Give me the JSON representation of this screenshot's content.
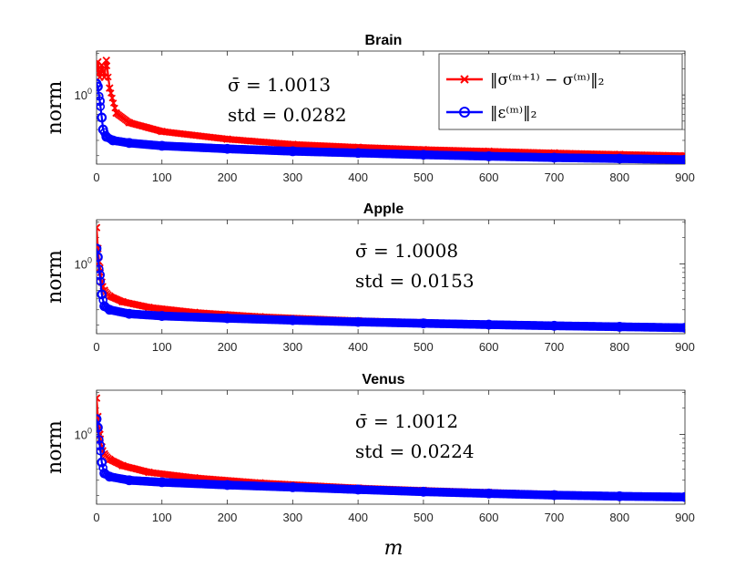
{
  "figure": {
    "xlabel": "m",
    "legend_placement": "top-right of first panel",
    "colors": {
      "series1": "#ff0000",
      "series2": "#0000ff"
    }
  },
  "chart_data": [
    {
      "type": "line",
      "title": "Brain",
      "ylabel": "norm",
      "ytick_label": {
        "base": "10",
        "exp": "0"
      },
      "xlim": [
        0,
        900
      ],
      "xticks": [
        "0",
        "100",
        "200",
        "300",
        "400",
        "500",
        "600",
        "700",
        "800",
        "900"
      ],
      "yscale": "log",
      "annotation": {
        "mean_line": "σ̄ = 1.0013",
        "std_line": "std = 0.0282"
      },
      "series": [
        {
          "name": "‖σ⁽ᵐ⁺¹⁾ − σ⁽ᵐ⁾‖₂",
          "color": "#ff0000",
          "marker": "x",
          "x": [
            0,
            2,
            5,
            8,
            12,
            15,
            20,
            30,
            50,
            100,
            200,
            300,
            400,
            500,
            600,
            700,
            800,
            900
          ],
          "y": [
            1.9,
            2.4,
            1.6,
            2.2,
            1.6,
            2.5,
            1.2,
            0.62,
            0.48,
            0.38,
            0.31,
            0.27,
            0.25,
            0.235,
            0.225,
            0.215,
            0.207,
            0.2
          ]
        },
        {
          "name": "‖ε⁽ᵐ⁾‖₂",
          "color": "#0000ff",
          "marker": "o",
          "x": [
            0,
            2,
            5,
            8,
            10,
            15,
            25,
            50,
            100,
            200,
            300,
            400,
            500,
            600,
            700,
            800,
            900
          ],
          "y": [
            1.35,
            1.25,
            0.85,
            0.55,
            0.4,
            0.33,
            0.3,
            0.28,
            0.26,
            0.24,
            0.225,
            0.215,
            0.205,
            0.197,
            0.19,
            0.185,
            0.18
          ]
        }
      ]
    },
    {
      "type": "line",
      "title": "Apple",
      "ylabel": "norm",
      "ytick_label": {
        "base": "10",
        "exp": "0"
      },
      "xlim": [
        0,
        900
      ],
      "xticks": [
        "0",
        "100",
        "200",
        "300",
        "400",
        "500",
        "600",
        "700",
        "800",
        "900"
      ],
      "yscale": "log",
      "annotation": {
        "mean_line": "σ̄ = 1.0008",
        "std_line": "std = 0.0153"
      },
      "series": [
        {
          "name": "‖σ⁽ᵐ⁺¹⁾ − σ⁽ᵐ⁾‖₂",
          "color": "#ff0000",
          "marker": "x",
          "x": [
            0,
            2,
            5,
            8,
            12,
            20,
            40,
            80,
            150,
            250,
            400,
            500,
            600,
            700,
            800,
            900
          ],
          "y": [
            2.6,
            1.5,
            0.9,
            0.62,
            0.5,
            0.43,
            0.37,
            0.32,
            0.28,
            0.25,
            0.225,
            0.215,
            0.205,
            0.198,
            0.192,
            0.187
          ]
        },
        {
          "name": "‖ε⁽ᵐ⁾‖₂",
          "color": "#0000ff",
          "marker": "o",
          "x": [
            0,
            2,
            5,
            8,
            12,
            20,
            50,
            100,
            200,
            300,
            400,
            500,
            600,
            700,
            800,
            900
          ],
          "y": [
            1.5,
            1.2,
            0.75,
            0.45,
            0.33,
            0.3,
            0.27,
            0.255,
            0.24,
            0.228,
            0.218,
            0.21,
            0.203,
            0.197,
            0.192,
            0.187
          ]
        }
      ]
    },
    {
      "type": "line",
      "title": "Venus",
      "ylabel": "norm",
      "ytick_label": {
        "base": "10",
        "exp": "0"
      },
      "xlim": [
        0,
        900
      ],
      "xticks": [
        "0",
        "100",
        "200",
        "300",
        "400",
        "500",
        "600",
        "700",
        "800",
        "900"
      ],
      "yscale": "log",
      "annotation": {
        "mean_line": "σ̄ = 1.0012",
        "std_line": "std = 0.0224"
      },
      "series": [
        {
          "name": "‖σ⁽ᵐ⁺¹⁾ − σ⁽ᵐ⁾‖₂",
          "color": "#ff0000",
          "marker": "x",
          "x": [
            0,
            2,
            5,
            8,
            12,
            20,
            40,
            80,
            150,
            250,
            400,
            500,
            600,
            700,
            800,
            900
          ],
          "y": [
            2.6,
            1.6,
            1.0,
            0.72,
            0.6,
            0.52,
            0.44,
            0.37,
            0.32,
            0.28,
            0.245,
            0.23,
            0.218,
            0.208,
            0.2,
            0.194
          ]
        },
        {
          "name": "‖ε⁽ᵐ⁾‖₂",
          "color": "#0000ff",
          "marker": "o",
          "x": [
            0,
            2,
            5,
            8,
            12,
            20,
            50,
            100,
            200,
            300,
            400,
            500,
            600,
            700,
            800,
            900
          ],
          "y": [
            1.5,
            1.2,
            0.75,
            0.48,
            0.36,
            0.33,
            0.3,
            0.285,
            0.265,
            0.25,
            0.235,
            0.222,
            0.212,
            0.203,
            0.197,
            0.193
          ]
        }
      ]
    }
  ]
}
